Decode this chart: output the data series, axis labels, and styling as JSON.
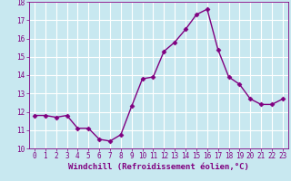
{
  "x": [
    0,
    1,
    2,
    3,
    4,
    5,
    6,
    7,
    8,
    9,
    10,
    11,
    12,
    13,
    14,
    15,
    16,
    17,
    18,
    19,
    20,
    21,
    22,
    23
  ],
  "y": [
    11.8,
    11.8,
    11.7,
    11.8,
    11.1,
    11.1,
    10.5,
    10.4,
    10.75,
    12.3,
    13.8,
    13.9,
    15.3,
    15.8,
    16.5,
    17.3,
    17.6,
    15.4,
    13.9,
    13.5,
    12.7,
    12.4,
    12.4,
    12.7
  ],
  "line_color": "#800080",
  "marker": "D",
  "marker_size": 2.5,
  "background_color": "#c8e8f0",
  "grid_color": "#ffffff",
  "xlabel": "Windchill (Refroidissement éolien,°C)",
  "xlabel_color": "#800080",
  "tick_color": "#800080",
  "xlim": [
    -0.5,
    23.5
  ],
  "ylim": [
    10,
    18
  ],
  "yticks": [
    10,
    11,
    12,
    13,
    14,
    15,
    16,
    17,
    18
  ],
  "xticks": [
    0,
    1,
    2,
    3,
    4,
    5,
    6,
    7,
    8,
    9,
    10,
    11,
    12,
    13,
    14,
    15,
    16,
    17,
    18,
    19,
    20,
    21,
    22,
    23
  ],
  "tick_fontsize": 5.5,
  "xlabel_fontsize": 6.5,
  "linewidth": 1.0
}
